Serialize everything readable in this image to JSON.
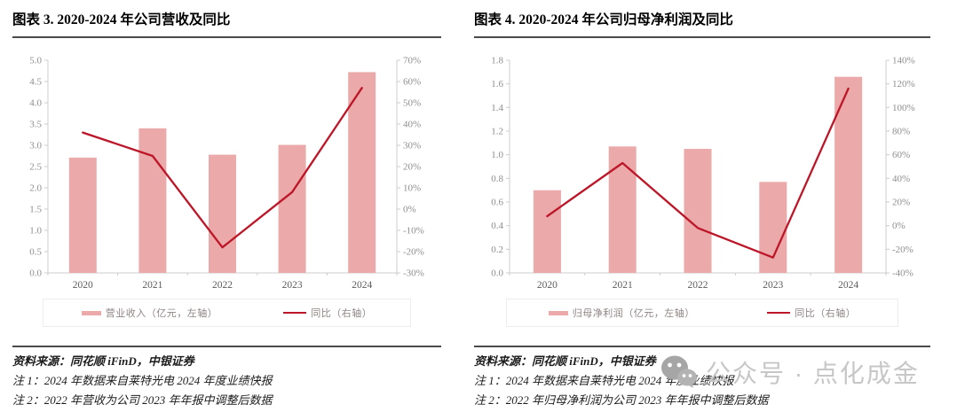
{
  "colors": {
    "bar": "#EBA9A9",
    "line": "#BD1628",
    "axis": "#cccccc",
    "tick_text": "#8e8e8e",
    "xtick_text": "#5c5c5c"
  },
  "watermark": {
    "icon": "wechat-icon",
    "text": "公众号 · 点化成金"
  },
  "panels": [
    {
      "source": "资料来源：同花顺 iFinD，中银证券",
      "notes": [
        "注 1：2024 年数据来自莱特光电 2024 年度业绩快报",
        "注 2：2022 年营收为公司 2023 年年报中调整后数据"
      ]
    },
    {
      "source": "资料来源：同花顺 iFinD，中银证券",
      "notes": [
        "注 1：2024 年数据来自莱特光电 2024 年度业绩快报",
        "注 2：2022 年归母净利润为公司 2023 年年报中调整后数据"
      ]
    }
  ],
  "chart_data": [
    {
      "type": "bar+line combo",
      "title": "图表 3. 2020-2024 年公司营收及同比",
      "categories": [
        "2020",
        "2021",
        "2022",
        "2023",
        "2024"
      ],
      "series": [
        {
          "name": "营业收入（亿元，左轴）",
          "type": "bar",
          "axis": "left",
          "values": [
            2.71,
            3.4,
            2.78,
            3.01,
            4.72
          ]
        },
        {
          "name": "同比（右轴）",
          "type": "line",
          "axis": "right",
          "unit": "%",
          "values": [
            36,
            25,
            -18,
            8,
            57
          ]
        }
      ],
      "left_axis": {
        "min": 0,
        "max": 5,
        "step": 0.5,
        "ticks": [
          "0.0",
          "0.5",
          "1.0",
          "1.5",
          "2.0",
          "2.5",
          "3.0",
          "3.5",
          "4.0",
          "4.5",
          "5.0"
        ]
      },
      "right_axis": {
        "min": -30,
        "max": 70,
        "step": 10,
        "ticks": [
          "-30%",
          "-20%",
          "-10%",
          "0%",
          "10%",
          "20%",
          "30%",
          "40%",
          "50%",
          "60%",
          "70%"
        ]
      },
      "grid": false,
      "legend_position": "bottom"
    },
    {
      "type": "bar+line combo",
      "title": "图表 4. 2020-2024 年公司归母净利润及同比",
      "categories": [
        "2020",
        "2021",
        "2022",
        "2023",
        "2024"
      ],
      "series": [
        {
          "name": "归母净利润（亿元，左轴）",
          "type": "bar",
          "axis": "left",
          "values": [
            0.7,
            1.07,
            1.05,
            0.77,
            1.66
          ]
        },
        {
          "name": "同比（右轴）",
          "type": "line",
          "axis": "right",
          "unit": "%",
          "values": [
            8,
            53,
            -2,
            -27,
            116
          ]
        }
      ],
      "left_axis": {
        "min": 0,
        "max": 1.8,
        "step": 0.2,
        "ticks": [
          "0.0",
          "0.2",
          "0.4",
          "0.6",
          "0.8",
          "1.0",
          "1.2",
          "1.4",
          "1.6",
          "1.8"
        ]
      },
      "right_axis": {
        "min": -40,
        "max": 140,
        "step": 20,
        "ticks": [
          "-40%",
          "-20%",
          "0%",
          "20%",
          "40%",
          "60%",
          "80%",
          "100%",
          "120%",
          "140%"
        ]
      },
      "grid": false,
      "legend_position": "bottom"
    }
  ]
}
